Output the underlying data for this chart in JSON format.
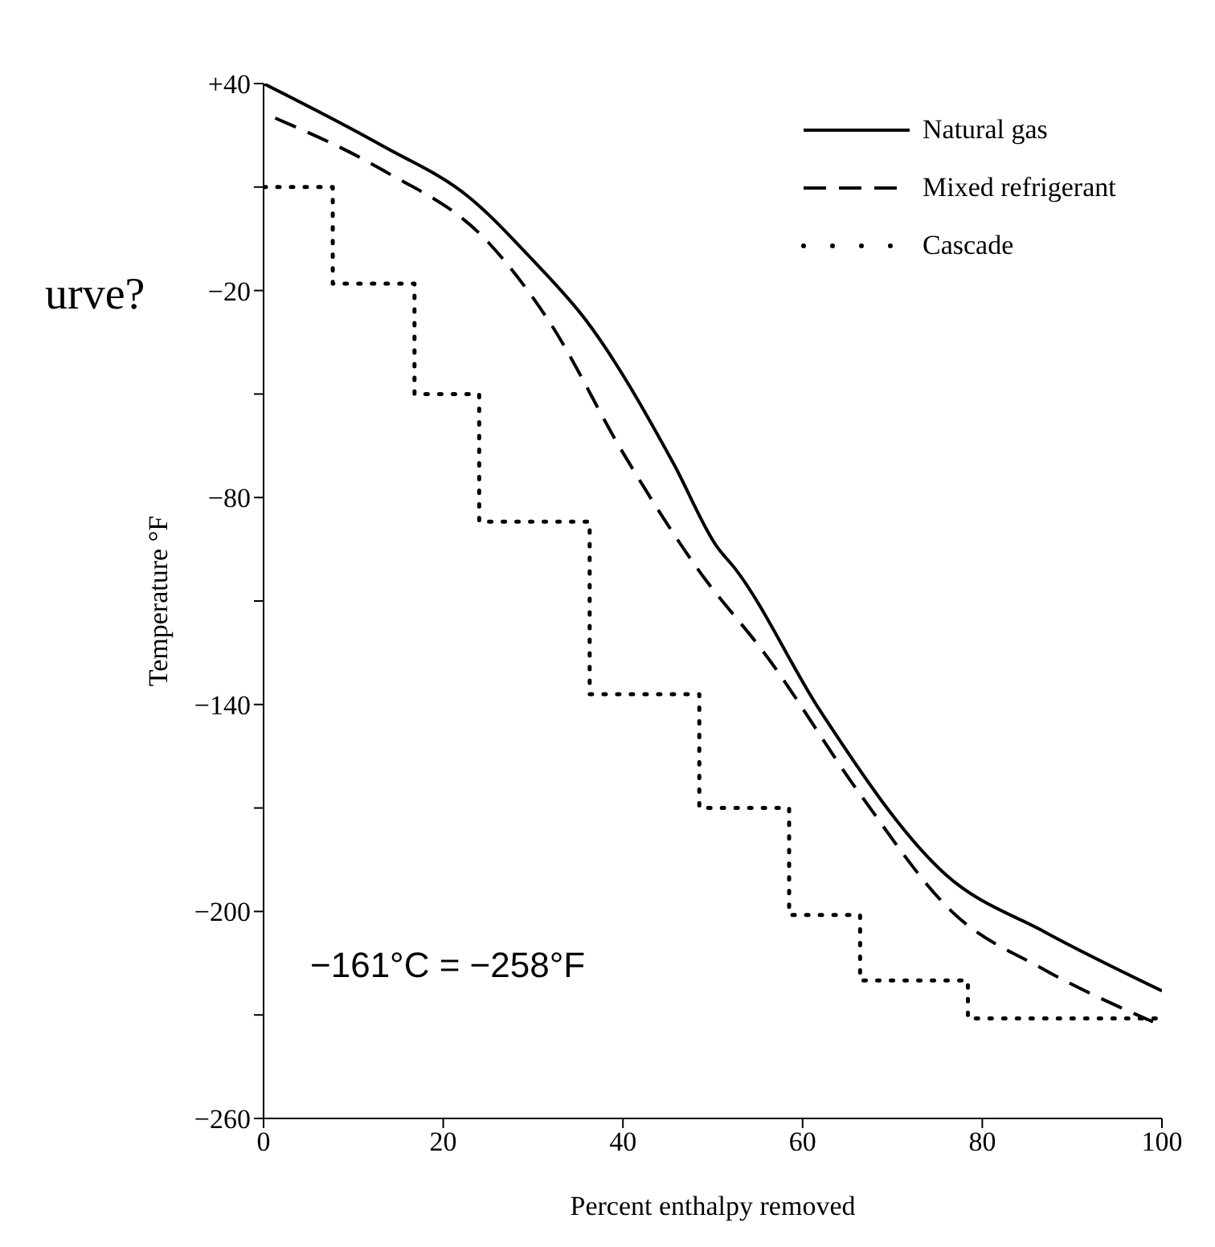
{
  "chart_data": {
    "type": "line",
    "xlabel": "Percent  enthalpy removed",
    "ylabel": "Temperature °F",
    "annotations": [
      "−161°C = −258°F",
      "urve?"
    ],
    "xlim": [
      0,
      100
    ],
    "xticks": [
      0,
      20,
      40,
      60,
      80,
      100
    ],
    "ylim": [
      -260,
      40
    ],
    "yticks": [
      {
        "value": 40,
        "label": "+40"
      },
      {
        "value": 10,
        "label": null
      },
      {
        "value": -20,
        "label": "−20"
      },
      {
        "value": -50,
        "label": null
      },
      {
        "value": -80,
        "label": "−80"
      },
      {
        "value": -110,
        "label": null
      },
      {
        "value": -140,
        "label": "−140"
      },
      {
        "value": -170,
        "label": null
      },
      {
        "value": -200,
        "label": "−200"
      },
      {
        "value": -230,
        "label": null
      },
      {
        "value": -260,
        "label": "−260"
      }
    ],
    "legend": "top right",
    "marker": "none",
    "series": [
      {
        "name": "Natural gas",
        "color": "#000000",
        "line_style": "solid",
        "x": [
          0,
          13.2,
          22.9,
          29.9,
          36,
          45.6,
          50.4,
          52.6,
          62,
          75.8,
          87,
          100
        ],
        "values": [
          40,
          22,
          7,
          -11,
          -29,
          -70,
          -94,
          -101,
          -142,
          -189,
          -206,
          -223
        ]
      },
      {
        "name": "Mixed refrigerant",
        "color": "#000000",
        "line_style": "dashed",
        "x": [
          1.3,
          13.2,
          25,
          31.8,
          40,
          48.4,
          56,
          66.4,
          76.6,
          87,
          99
        ],
        "values": [
          30,
          15,
          -6,
          -29,
          -67,
          -101,
          -126,
          -166,
          -200,
          -217,
          -232
        ]
      },
      {
        "name": "Cascade",
        "type": "step",
        "color": "#000000",
        "line_style": "dotted",
        "x": [
          0,
          7.7,
          16.8,
          24,
          36.3,
          48.5,
          58.5,
          66.4,
          78.4,
          100
        ],
        "values": [
          10,
          -18,
          -50,
          -87,
          -137,
          -170,
          -201,
          -220,
          -231,
          -231
        ]
      }
    ]
  }
}
